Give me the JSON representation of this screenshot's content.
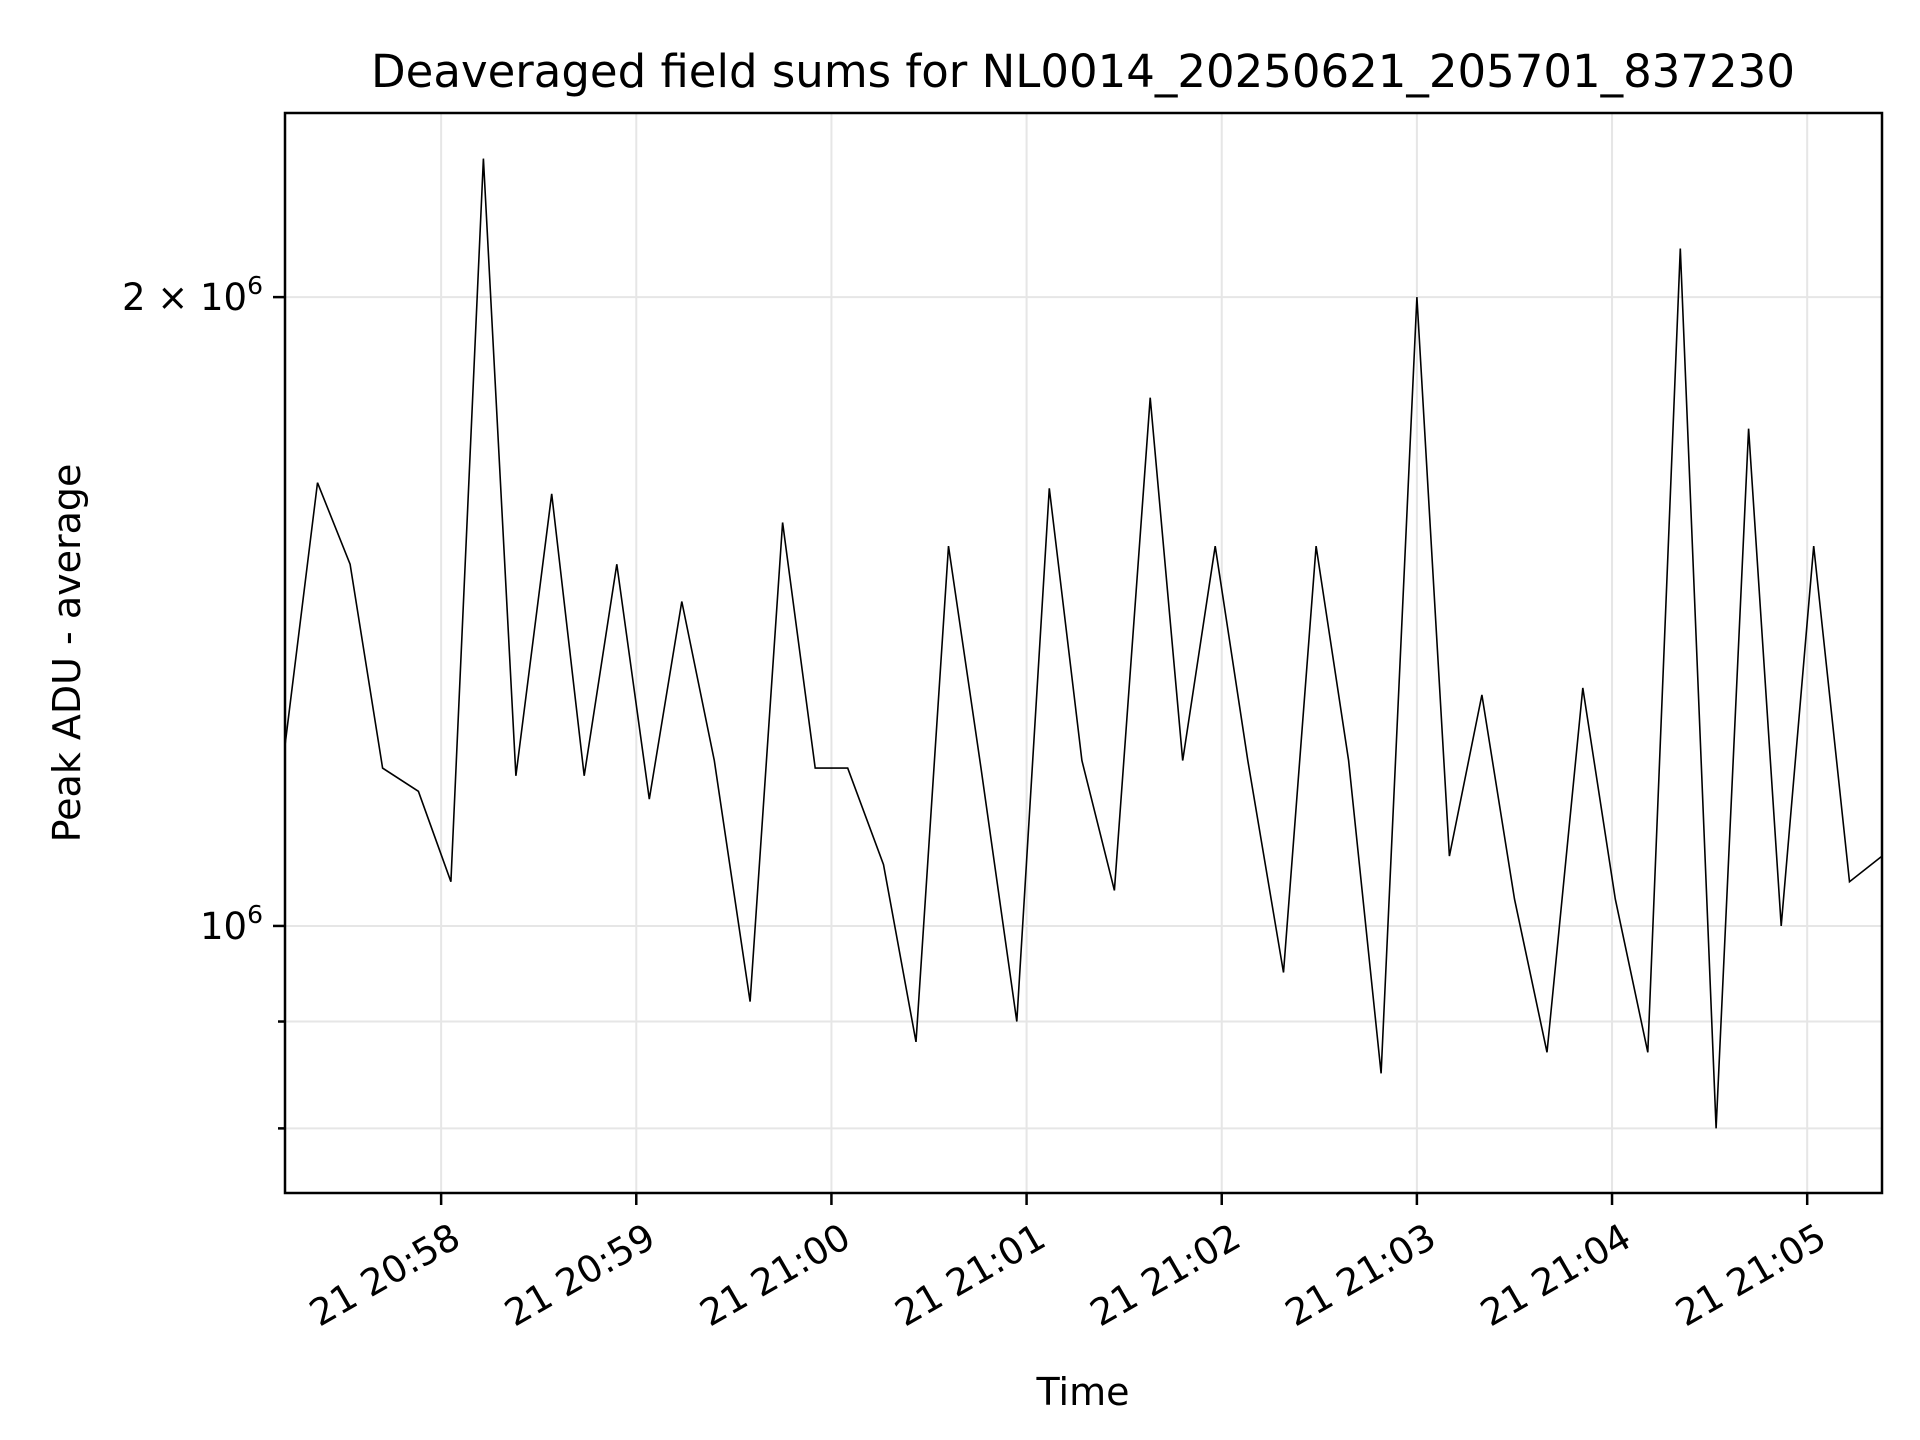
{
  "chart_data": {
    "type": "line",
    "title": "Deaveraged field sums for NL0014_20250621_205701_837230",
    "xlabel": "Time",
    "ylabel": "Peak ADU - average",
    "yscale": "log",
    "grid": true,
    "x_tick_labels": [
      "21 20:58",
      "21 20:59",
      "21 21:00",
      "21 21:01",
      "21 21:02",
      "21 21:03",
      "21 21:04",
      "21 21:05"
    ],
    "y_tick_labels": [
      {
        "value": 2000000,
        "base": "2 × 10",
        "exp": "6"
      },
      {
        "value": 1000000,
        "base": "10",
        "exp": "6"
      }
    ],
    "y_minor_ticks": [
      800000,
      900000
    ],
    "series": [
      {
        "color": "#000000",
        "x": [
          "2025-06-21 20:57:12",
          "2025-06-21 20:57:22",
          "2025-06-21 20:57:32",
          "2025-06-21 20:57:42",
          "2025-06-21 20:57:53",
          "2025-06-21 20:58:03",
          "2025-06-21 20:58:13",
          "2025-06-21 20:58:23",
          "2025-06-21 20:58:34",
          "2025-06-21 20:58:44",
          "2025-06-21 20:58:54",
          "2025-06-21 20:59:04",
          "2025-06-21 20:59:14",
          "2025-06-21 20:59:24",
          "2025-06-21 20:59:35",
          "2025-06-21 20:59:45",
          "2025-06-21 20:59:55",
          "2025-06-21 21:00:05",
          "2025-06-21 21:00:16",
          "2025-06-21 21:00:26",
          "2025-06-21 21:00:36",
          "2025-06-21 21:00:46",
          "2025-06-21 21:00:57",
          "2025-06-21 21:01:07",
          "2025-06-21 21:01:17",
          "2025-06-21 21:01:27",
          "2025-06-21 21:01:38",
          "2025-06-21 21:01:48",
          "2025-06-21 21:01:58",
          "2025-06-21 21:02:08",
          "2025-06-21 21:02:19",
          "2025-06-21 21:02:29",
          "2025-06-21 21:02:39",
          "2025-06-21 21:02:49",
          "2025-06-21 21:03:00",
          "2025-06-21 21:03:10",
          "2025-06-21 21:03:20",
          "2025-06-21 21:03:30",
          "2025-06-21 21:03:40",
          "2025-06-21 21:03:51",
          "2025-06-21 21:04:01",
          "2025-06-21 21:04:11",
          "2025-06-21 21:04:21",
          "2025-06-21 21:04:32",
          "2025-06-21 21:04:42",
          "2025-06-21 21:04:52",
          "2025-06-21 21:05:02",
          "2025-06-21 21:05:13",
          "2025-06-21 21:05:23"
        ],
        "y": [
          1220000,
          1630000,
          1490000,
          1190000,
          1160000,
          1050000,
          2330000,
          1180000,
          1610000,
          1180000,
          1490000,
          1150000,
          1430000,
          1200000,
          920000,
          1560000,
          1190000,
          1190000,
          1070000,
          880000,
          1520000,
          1190000,
          900000,
          1620000,
          1200000,
          1040000,
          1790000,
          1200000,
          1520000,
          1200000,
          950000,
          1520000,
          1200000,
          850000,
          2000000,
          1080000,
          1290000,
          1030000,
          870000,
          1300000,
          1030000,
          870000,
          2110000,
          800000,
          1730000,
          1000000,
          1520000,
          1050000,
          1080000
        ]
      }
    ]
  }
}
